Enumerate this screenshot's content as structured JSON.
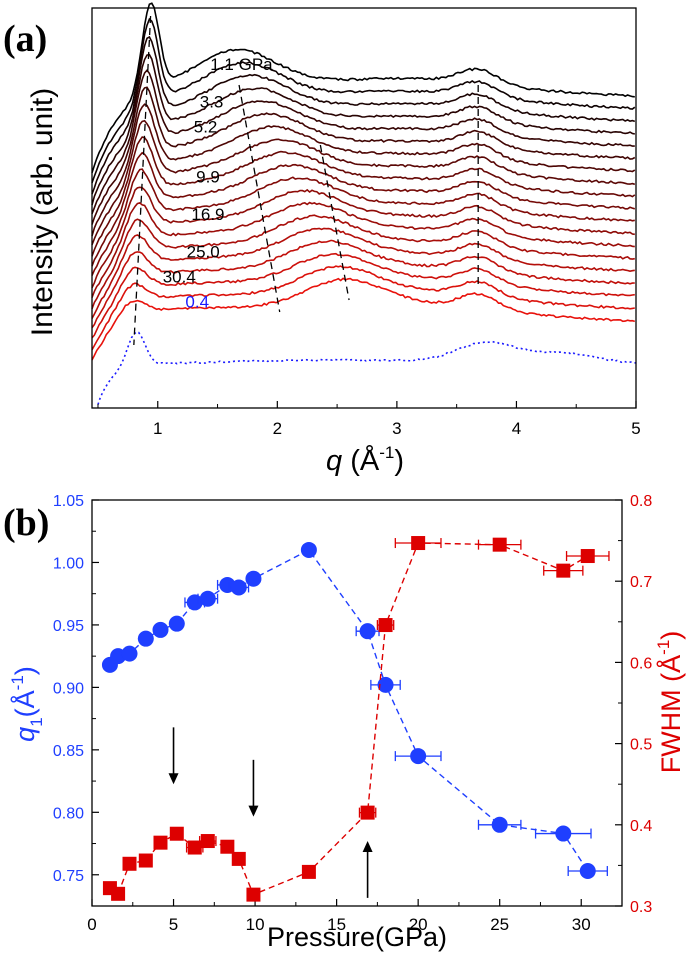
{
  "panel_labels": [
    "(a)",
    "(b)"
  ],
  "chart_data": [
    {
      "type": "line",
      "panel": "(a)",
      "ylabel": "Intensity (arb. unit)",
      "xlabel_var": "q",
      "xlabel_unit_open": " (Å",
      "xlabel_unit_exp": "-1",
      "xlabel_unit_close": ")",
      "xlim": [
        0.45,
        5.0
      ],
      "xticks": [
        1,
        2,
        3,
        4,
        5
      ],
      "y_ticks_labeled": false,
      "grid": false,
      "stack_colors": {
        "top": "#000000",
        "bottom": "#e8120c",
        "reference": "#1a1aff"
      },
      "labels": [
        {
          "text": "1.1 GPa",
          "x": 1.7,
          "level": 0,
          "color": "#000000"
        },
        {
          "text": "3.3",
          "x": 1.45,
          "level": 3,
          "color": "#000000"
        },
        {
          "text": "5.2",
          "x": 1.4,
          "level": 5,
          "color": "#000000"
        },
        {
          "text": "9.9",
          "x": 1.42,
          "level": 9,
          "color": "#000000"
        },
        {
          "text": "16.9",
          "x": 1.42,
          "level": 12,
          "color": "#000000"
        },
        {
          "text": "25.0",
          "x": 1.38,
          "level": 15,
          "color": "#000000"
        },
        {
          "text": "30.4",
          "x": 1.18,
          "level": 17,
          "color": "#000000"
        },
        {
          "text": "0.4",
          "x": 1.33,
          "level": 19,
          "color": "#1a1aff"
        }
      ]
    },
    {
      "type": "scatter",
      "panel": "(b)",
      "xlabel": "Pressure(GPa)",
      "ylabel_left_var": "q",
      "ylabel_left_sub": "1",
      "ylabel_left_unit": "(Å",
      "ylabel_left_exp": "-1",
      "ylabel_left_close": ")",
      "ylabel_right": "FWHM (Å",
      "ylabel_right_exp": "-1",
      "ylabel_right_close": ")",
      "xlim": [
        0,
        32.5
      ],
      "xticks": [
        0,
        5,
        10,
        15,
        20,
        25,
        30
      ],
      "ylim_left": [
        0.725,
        1.05
      ],
      "yticks_left": [
        "0.75",
        "0.80",
        "0.85",
        "0.90",
        "0.95",
        "1.00",
        "1.05"
      ],
      "ylim_right": [
        0.3,
        0.8
      ],
      "yticks_right": [
        "0.3",
        "0.4",
        "0.5",
        "0.6",
        "0.7",
        "0.8"
      ],
      "left_color": "#1f3fff",
      "right_color": "#dd0000",
      "series": [
        {
          "axis": "left",
          "marker": "circle",
          "x": [
            1.1,
            1.6,
            2.3,
            3.3,
            4.2,
            5.2,
            6.3,
            7.1,
            8.3,
            9.0,
            9.9,
            13.3,
            16.9,
            18.0,
            20.0,
            25.0,
            28.9,
            30.4
          ],
          "y": [
            0.918,
            0.925,
            0.927,
            0.939,
            0.946,
            0.951,
            0.968,
            0.971,
            0.982,
            0.98,
            0.987,
            1.01,
            0.945,
            0.902,
            0.845,
            0.79,
            0.783,
            0.753
          ],
          "xerr": [
            0,
            0,
            0,
            0,
            0,
            0,
            0.6,
            0.6,
            0.6,
            0.6,
            0,
            0,
            0.7,
            0.9,
            1.4,
            1.3,
            1.7,
            1.2
          ]
        },
        {
          "axis": "right",
          "marker": "square",
          "x": [
            1.1,
            1.6,
            2.3,
            3.3,
            4.2,
            5.2,
            6.3,
            7.1,
            8.3,
            9.0,
            9.9,
            13.3,
            16.9,
            18.0,
            20.0,
            25.0,
            28.9,
            30.4
          ],
          "y": [
            0.322,
            0.315,
            0.352,
            0.356,
            0.378,
            0.389,
            0.372,
            0.38,
            0.373,
            0.358,
            0.314,
            0.342,
            0.415,
            0.646,
            0.747,
            0.745,
            0.713,
            0.731
          ],
          "xerr": [
            0,
            0,
            0,
            0,
            0,
            0,
            0.5,
            0.5,
            0,
            0,
            0,
            0,
            0.5,
            0.5,
            1.4,
            1.3,
            1.2,
            1.3
          ]
        }
      ],
      "arrows": [
        {
          "x": 5.0,
          "y_from": 0.52,
          "y_to": 0.45
        },
        {
          "x": 9.9,
          "y_from": 0.48,
          "y_to": 0.41
        },
        {
          "x": 16.9,
          "y_from": 0.31,
          "y_to": 0.38
        }
      ]
    }
  ]
}
